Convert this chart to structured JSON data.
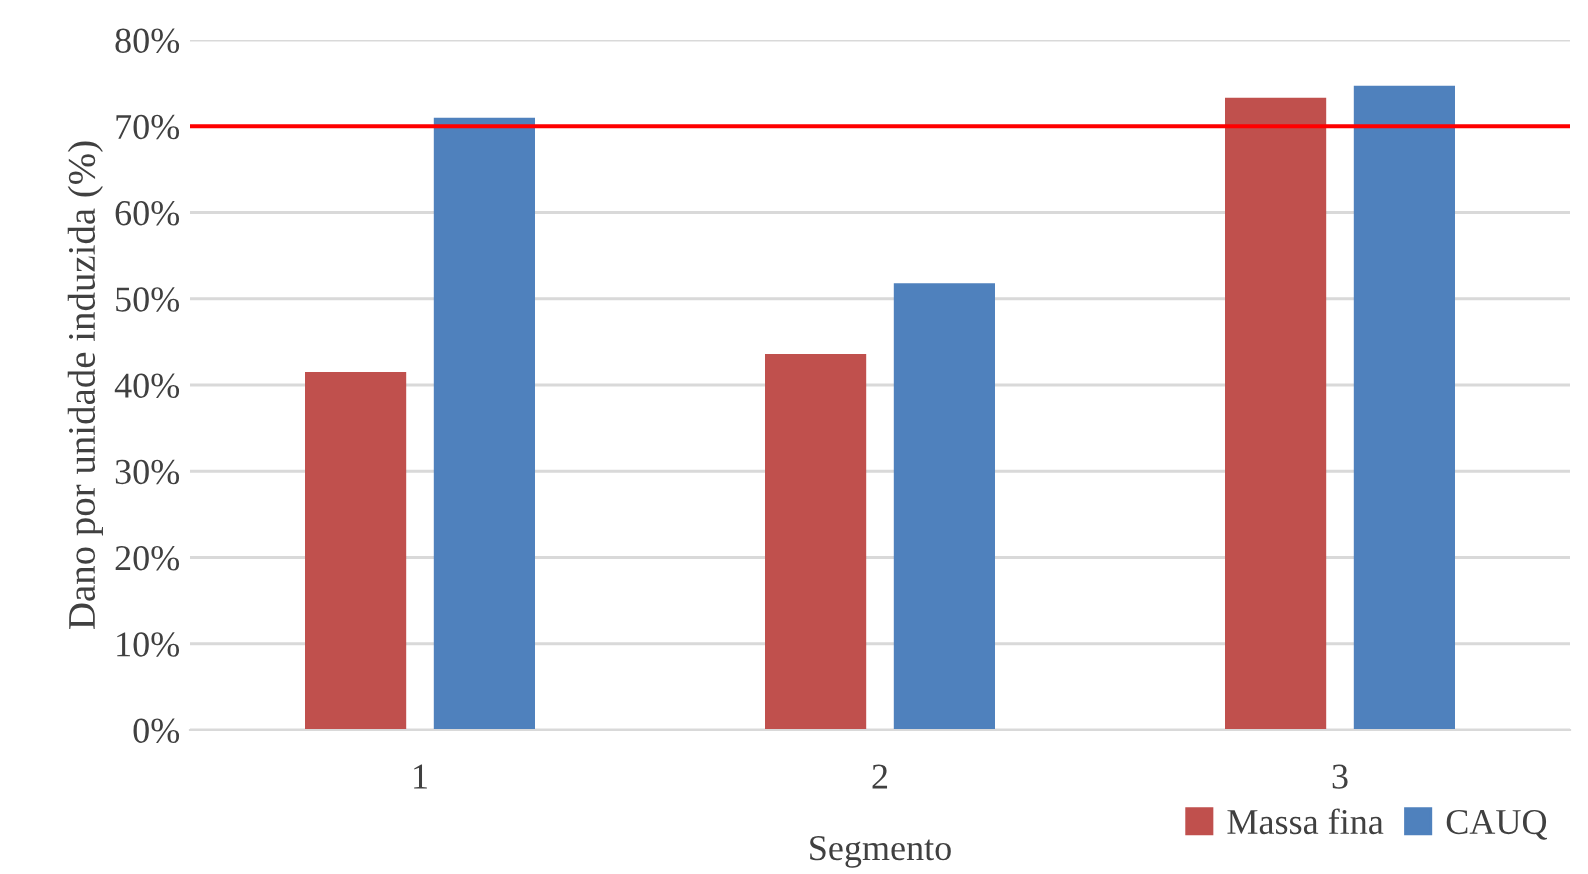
{
  "chart_data": {
    "type": "bar",
    "xlabel": "Segmento",
    "ylabel": "Dano por unidade induzida (%)",
    "categories": [
      "1",
      "2",
      "3"
    ],
    "series": [
      {
        "name": "Massa fina",
        "color": "#c0504d",
        "values": [
          41.5,
          43.6,
          73.3
        ]
      },
      {
        "name": "CAUQ",
        "color": "#4f81bd",
        "values": [
          71.0,
          51.8,
          74.7
        ]
      }
    ],
    "ylim": [
      0,
      80
    ],
    "yticks": [
      {
        "value": 0,
        "label": "0%"
      },
      {
        "value": 10,
        "label": "10%"
      },
      {
        "value": 20,
        "label": "20%"
      },
      {
        "value": 30,
        "label": "30%"
      },
      {
        "value": 40,
        "label": "40%"
      },
      {
        "value": 50,
        "label": "50%"
      },
      {
        "value": 60,
        "label": "60%"
      },
      {
        "value": 70,
        "label": "70%"
      },
      {
        "value": 80,
        "label": "80%"
      }
    ],
    "ref_lines": [
      {
        "axis": "y",
        "value": 70,
        "color": "#ff0000"
      }
    ],
    "grid": "y",
    "legend": "bottom right"
  }
}
